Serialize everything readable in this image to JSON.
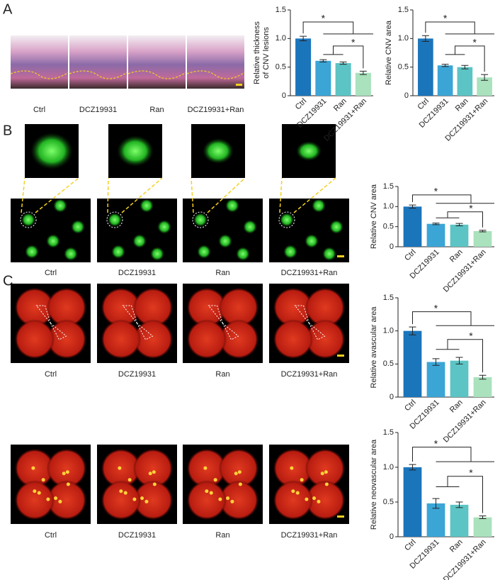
{
  "panels": [
    {
      "label": "A",
      "rows": [
        [
          "Ctrl",
          "DCZ19931",
          "Ran",
          "DCZ19931+Ran"
        ]
      ]
    },
    {
      "label": "B",
      "rows": [
        [
          "Ctrl",
          "DCZ19931",
          "Ran",
          "DCZ19931+Ran"
        ]
      ]
    },
    {
      "label": "C",
      "rows": [
        [
          "Ctrl",
          "DCZ19931",
          "Ran",
          "DCZ19931+Ran"
        ],
        [
          "Ctrl",
          "DCZ19931",
          "Ran",
          "DCZ19931+Ran"
        ]
      ]
    }
  ],
  "chart_data": [
    {
      "type": "bar",
      "ylabel": [
        "Relative thickness",
        "of CNV lesions"
      ],
      "categories": [
        "Ctrl",
        "DCZ19931",
        "Ran",
        "DCZ19931+Ran"
      ],
      "values": [
        1.0,
        0.61,
        0.57,
        0.4
      ],
      "errors": [
        0.04,
        0.02,
        0.02,
        0.03
      ],
      "colors": [
        "#1b75bb",
        "#3ba5d6",
        "#5cc4c4",
        "#a9e2bd"
      ],
      "ylim": [
        0,
        1.5
      ],
      "yticks": [
        0,
        0.5,
        {
          "value": 1,
          "label": "1.0"
        },
        1.5
      ],
      "annotations": [
        "*",
        "*"
      ]
    },
    {
      "type": "bar",
      "ylabel": [
        "Relative CNV area"
      ],
      "categories": [
        "Ctrl",
        "DCZ19931",
        "Ran",
        "DCZ19931+Ran"
      ],
      "values": [
        1.0,
        0.53,
        0.5,
        0.32
      ],
      "errors": [
        0.05,
        0.02,
        0.03,
        0.05
      ],
      "colors": [
        "#1b75bb",
        "#3ba5d6",
        "#5cc4c4",
        "#a9e2bd"
      ],
      "ylim": [
        0,
        1.5
      ],
      "yticks": [
        0,
        0.5,
        {
          "value": 1,
          "label": "1.0"
        },
        1.5
      ],
      "annotations": [
        "*",
        "*"
      ]
    },
    {
      "type": "bar",
      "ylabel": [
        "Relative CNV area"
      ],
      "categories": [
        "Ctrl",
        "DCZ19931",
        "Ran",
        "DCZ19931+Ran"
      ],
      "values": [
        1.0,
        0.57,
        0.55,
        0.39
      ],
      "errors": [
        0.04,
        0.02,
        0.03,
        0.02
      ],
      "colors": [
        "#1b75bb",
        "#3ba5d6",
        "#5cc4c4",
        "#a9e2bd"
      ],
      "ylim": [
        0,
        1.5
      ],
      "yticks": [
        0,
        0.5,
        {
          "value": 1,
          "label": "1.0"
        },
        1.5
      ],
      "annotations": [
        "*",
        "*"
      ]
    },
    {
      "type": "bar",
      "ylabel": [
        "Relative avascular area"
      ],
      "categories": [
        "Ctrl",
        "DCZ19931",
        "Ran",
        "DCZ19931+Ran"
      ],
      "values": [
        1.0,
        0.53,
        0.55,
        0.3
      ],
      "errors": [
        0.06,
        0.05,
        0.05,
        0.03
      ],
      "colors": [
        "#1b75bb",
        "#3ba5d6",
        "#5cc4c4",
        "#a9e2bd"
      ],
      "ylim": [
        0,
        1.5
      ],
      "yticks": [
        0,
        0.5,
        {
          "value": 1,
          "label": "1.0"
        },
        1.5
      ],
      "annotations": [
        "*",
        "*"
      ]
    },
    {
      "type": "bar",
      "ylabel": [
        "Relative neovascular area"
      ],
      "categories": [
        "Ctrl",
        "DCZ19931",
        "Ran",
        "DCZ19931+Ran"
      ],
      "values": [
        1.0,
        0.48,
        0.46,
        0.28
      ],
      "errors": [
        0.04,
        0.07,
        0.04,
        0.02
      ],
      "colors": [
        "#1b75bb",
        "#3ba5d6",
        "#5cc4c4",
        "#a9e2bd"
      ],
      "ylim": [
        0,
        1.5
      ],
      "yticks": [
        0,
        0.5,
        {
          "value": 1,
          "label": "1.0"
        },
        1.5
      ],
      "annotations": [
        "*",
        "*"
      ]
    }
  ]
}
